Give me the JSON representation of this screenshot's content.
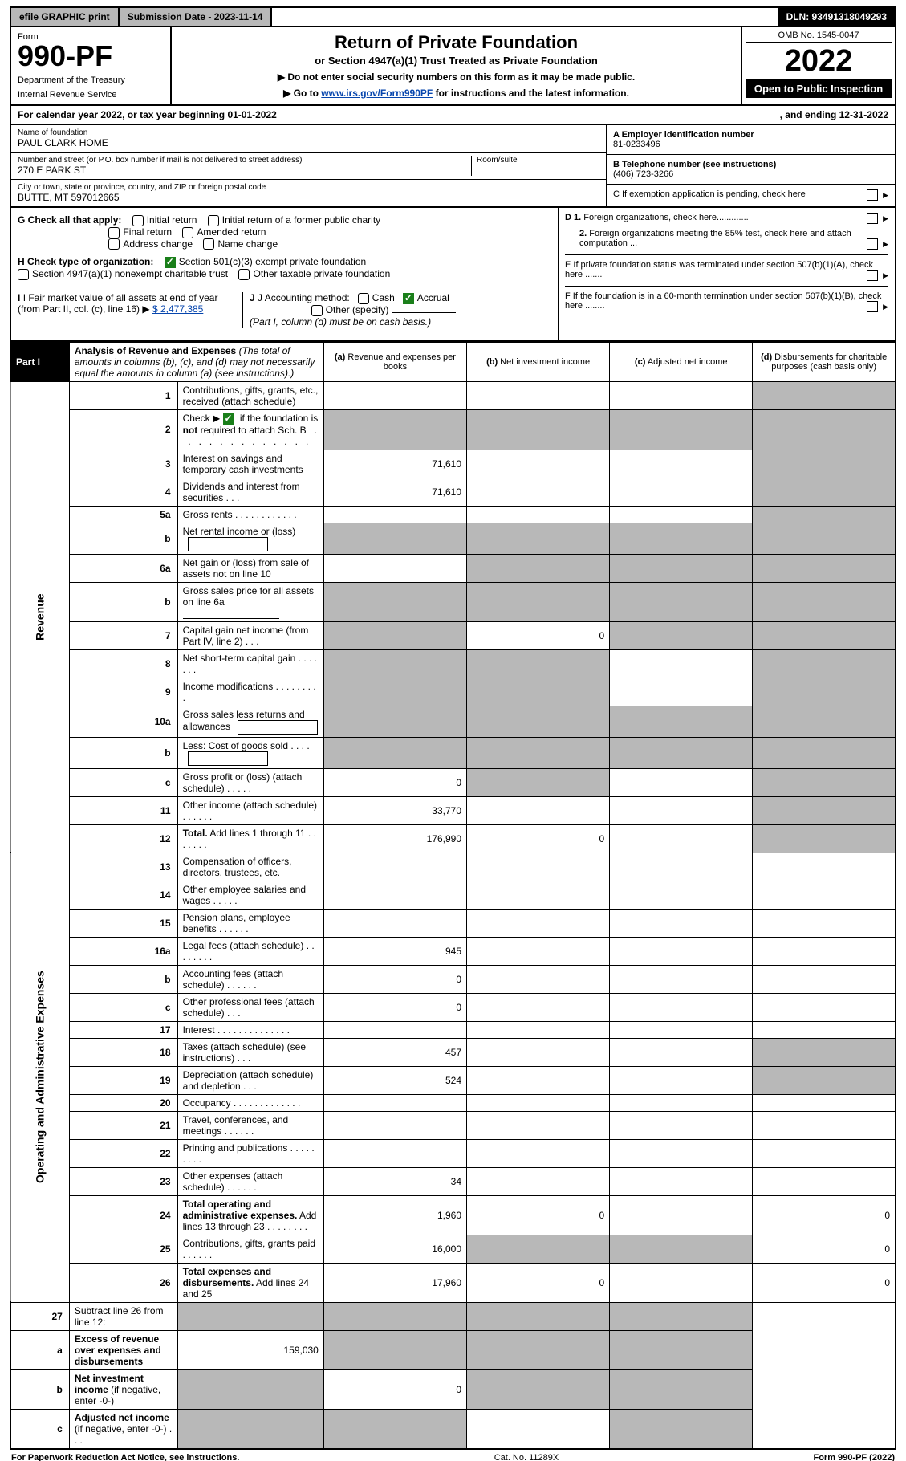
{
  "topbar": {
    "efile": "efile GRAPHIC print",
    "submission": "Submission Date - 2023-11-14",
    "dln": "DLN: 93491318049293"
  },
  "header": {
    "form_label": "Form",
    "form_no": "990-PF",
    "dept": "Department of the Treasury",
    "irs": "Internal Revenue Service",
    "title": "Return of Private Foundation",
    "subtitle": "or Section 4947(a)(1) Trust Treated as Private Foundation",
    "note1": "▶ Do not enter social security numbers on this form as it may be made public.",
    "note2_pre": "▶ Go to ",
    "note2_link": "www.irs.gov/Form990PF",
    "note2_post": " for instructions and the latest information.",
    "omb": "OMB No. 1545-0047",
    "year": "2022",
    "open": "Open to Public Inspection"
  },
  "calyear": {
    "left": "For calendar year 2022, or tax year beginning 01-01-2022",
    "right": ", and ending 12-31-2022"
  },
  "entity": {
    "name_label": "Name of foundation",
    "name": "PAUL CLARK HOME",
    "addr_label": "Number and street (or P.O. box number if mail is not delivered to street address)",
    "addr": "270 E PARK ST",
    "room_label": "Room/suite",
    "city_label": "City or town, state or province, country, and ZIP or foreign postal code",
    "city": "BUTTE, MT  597012665",
    "A_label": "A Employer identification number",
    "A_val": "81-0233496",
    "B_label": "B Telephone number (see instructions)",
    "B_val": "(406) 723-3266",
    "C_label": "C  If exemption application is pending, check here"
  },
  "checks": {
    "G_label": "G Check all that apply:",
    "G_opts": [
      "Initial return",
      "Initial return of a former public charity",
      "Final return",
      "Amended return",
      "Address change",
      "Name change"
    ],
    "H_label": "H Check type of organization:",
    "H_opts": [
      "Section 501(c)(3) exempt private foundation",
      "Section 4947(a)(1) nonexempt charitable trust",
      "Other taxable private foundation"
    ],
    "H_checked": 0,
    "I_label": "I Fair market value of all assets at end of year (from Part II, col. (c), line 16)",
    "I_val": "$  2,477,385",
    "J_label": "J Accounting method:",
    "J_opts": [
      "Cash",
      "Accrual"
    ],
    "J_checked": 1,
    "J_other": "Other (specify)",
    "J_note": "(Part I, column (d) must be on cash basis.)",
    "D1": "D 1. Foreign organizations, check here.............",
    "D2": "2. Foreign organizations meeting the 85% test, check here and attach computation ...",
    "E": "E  If private foundation status was terminated under section 507(b)(1)(A), check here .......",
    "F": "F  If the foundation is in a 60-month termination under section 507(b)(1)(B), check here ........"
  },
  "part1": {
    "tab": "Part I",
    "title": "Analysis of Revenue and Expenses",
    "title_note": "(The total of amounts in columns (b), (c), and (d) may not necessarily equal the amounts in column (a) (see instructions).)",
    "cols": {
      "a": "(a) Revenue and expenses per books",
      "b": "(b) Net investment income",
      "c": "(c) Adjusted net income",
      "d": "(d) Disbursements for charitable purposes (cash basis only)"
    }
  },
  "sidelabels": {
    "revenue": "Revenue",
    "expenses": "Operating and Administrative Expenses"
  },
  "rows": [
    {
      "n": "1",
      "desc": "Contributions, gifts, grants, etc., received (attach schedule)",
      "a": "",
      "d_shade": true
    },
    {
      "n": "2",
      "desc": "Check ▶ [✓] if the foundation is <b>not</b> required to attach Sch. B  .  .  .  .  .  .  .  .  .  .  .  .  .  .  .  .  .",
      "a_shade": true,
      "b_shade": true,
      "c_shade": true,
      "d_shade": true,
      "has_check": true
    },
    {
      "n": "3",
      "desc": "Interest on savings and temporary cash investments",
      "a": "71,610",
      "d_shade": true
    },
    {
      "n": "4",
      "desc": "Dividends and interest from securities   .   .   .",
      "a": "71,610",
      "d_shade": true
    },
    {
      "n": "5a",
      "desc": "Gross rents   .   .   .   .   .   .   .   .   .   .   .   .",
      "d_shade": true
    },
    {
      "n": "b",
      "desc": "Net rental income or (loss)",
      "subfield": true,
      "a_shade": true,
      "b_shade": true,
      "c_shade": true,
      "d_shade": true
    },
    {
      "n": "6a",
      "desc": "Net gain or (loss) from sale of assets not on line 10",
      "b_shade": true,
      "c_shade": true,
      "d_shade": true
    },
    {
      "n": "b",
      "desc": "Gross sales price for all assets on line 6a",
      "subline": true,
      "a_shade": true,
      "b_shade": true,
      "c_shade": true,
      "d_shade": true
    },
    {
      "n": "7",
      "desc": "Capital gain net income (from Part IV, line 2)   .   .   .",
      "a_shade": true,
      "b": "0",
      "c_shade": true,
      "d_shade": true
    },
    {
      "n": "8",
      "desc": "Net short-term capital gain   .   .   .   .   .   .   .",
      "a_shade": true,
      "b_shade": true,
      "d_shade": true
    },
    {
      "n": "9",
      "desc": "Income modifications  .   .   .   .   .   .   .   .   .",
      "a_shade": true,
      "b_shade": true,
      "d_shade": true
    },
    {
      "n": "10a",
      "desc": "Gross sales less returns and allowances",
      "subfield": true,
      "a_shade": true,
      "b_shade": true,
      "c_shade": true,
      "d_shade": true
    },
    {
      "n": "b",
      "desc": "Less: Cost of goods sold   .   .   .   .",
      "subfield": true,
      "a_shade": true,
      "b_shade": true,
      "c_shade": true,
      "d_shade": true
    },
    {
      "n": "c",
      "desc": "Gross profit or (loss) (attach schedule)   .   .   .   .   .",
      "a": "0",
      "b_shade": true,
      "d_shade": true
    },
    {
      "n": "11",
      "desc": "Other income (attach schedule)   .   .   .   .   .   .",
      "a": "33,770",
      "d_shade": true
    },
    {
      "n": "12",
      "desc": "<b>Total.</b> Add lines 1 through 11   .   .   .   .   .   .   .",
      "a": "176,990",
      "b": "0",
      "d_shade": true
    }
  ],
  "exp_rows": [
    {
      "n": "13",
      "desc": "Compensation of officers, directors, trustees, etc."
    },
    {
      "n": "14",
      "desc": "Other employee salaries and wages   .   .   .   .   ."
    },
    {
      "n": "15",
      "desc": "Pension plans, employee benefits  .   .   .   .   .   ."
    },
    {
      "n": "16a",
      "desc": "Legal fees (attach schedule)  .   .   .   .   .   .   .   .",
      "a": "945"
    },
    {
      "n": "b",
      "desc": "Accounting fees (attach schedule)  .   .   .   .   .   .",
      "a": "0"
    },
    {
      "n": "c",
      "desc": "Other professional fees (attach schedule)   .   .   .",
      "a": "0"
    },
    {
      "n": "17",
      "desc": "Interest  .   .   .   .   .   .   .   .   .   .   .   .   .   ."
    },
    {
      "n": "18",
      "desc": "Taxes (attach schedule) (see instructions)   .   .   .",
      "a": "457",
      "d_shade": true
    },
    {
      "n": "19",
      "desc": "Depreciation (attach schedule) and depletion   .   .   .",
      "a": "524",
      "d_shade": true
    },
    {
      "n": "20",
      "desc": "Occupancy  .   .   .   .   .   .   .   .   .   .   .   .   ."
    },
    {
      "n": "21",
      "desc": "Travel, conferences, and meetings  .   .   .   .   .   ."
    },
    {
      "n": "22",
      "desc": "Printing and publications  .   .   .   .   .   .   .   .   ."
    },
    {
      "n": "23",
      "desc": "Other expenses (attach schedule)  .   .   .   .   .   .",
      "a": "34"
    },
    {
      "n": "24",
      "desc": "<b>Total operating and administrative expenses.</b> Add lines 13 through 23   .   .   .   .   .   .   .   .",
      "a": "1,960",
      "b": "0",
      "d": "0"
    },
    {
      "n": "25",
      "desc": "Contributions, gifts, grants paid   .   .   .   .   .   .",
      "a": "16,000",
      "b_shade": true,
      "c_shade": true,
      "d": "0"
    },
    {
      "n": "26",
      "desc": "<b>Total expenses and disbursements.</b> Add lines 24 and 25",
      "a": "17,960",
      "b": "0",
      "d": "0"
    }
  ],
  "bottom_rows": [
    {
      "n": "27",
      "desc": "Subtract line 26 from line 12:",
      "a_shade": true,
      "b_shade": true,
      "c_shade": true,
      "d_shade": true
    },
    {
      "n": "a",
      "desc": "<b>Excess of revenue over expenses and disbursements</b>",
      "a": "159,030",
      "b_shade": true,
      "c_shade": true,
      "d_shade": true
    },
    {
      "n": "b",
      "desc": "<b>Net investment income</b> (if negative, enter -0-)",
      "a_shade": true,
      "b": "0",
      "c_shade": true,
      "d_shade": true
    },
    {
      "n": "c",
      "desc": "<b>Adjusted net income</b> (if negative, enter -0-)   .   .   .",
      "a_shade": true,
      "b_shade": true,
      "d_shade": true
    }
  ],
  "footer": {
    "left": "For Paperwork Reduction Act Notice, see instructions.",
    "mid": "Cat. No. 11289X",
    "right": "Form 990-PF (2022)"
  }
}
